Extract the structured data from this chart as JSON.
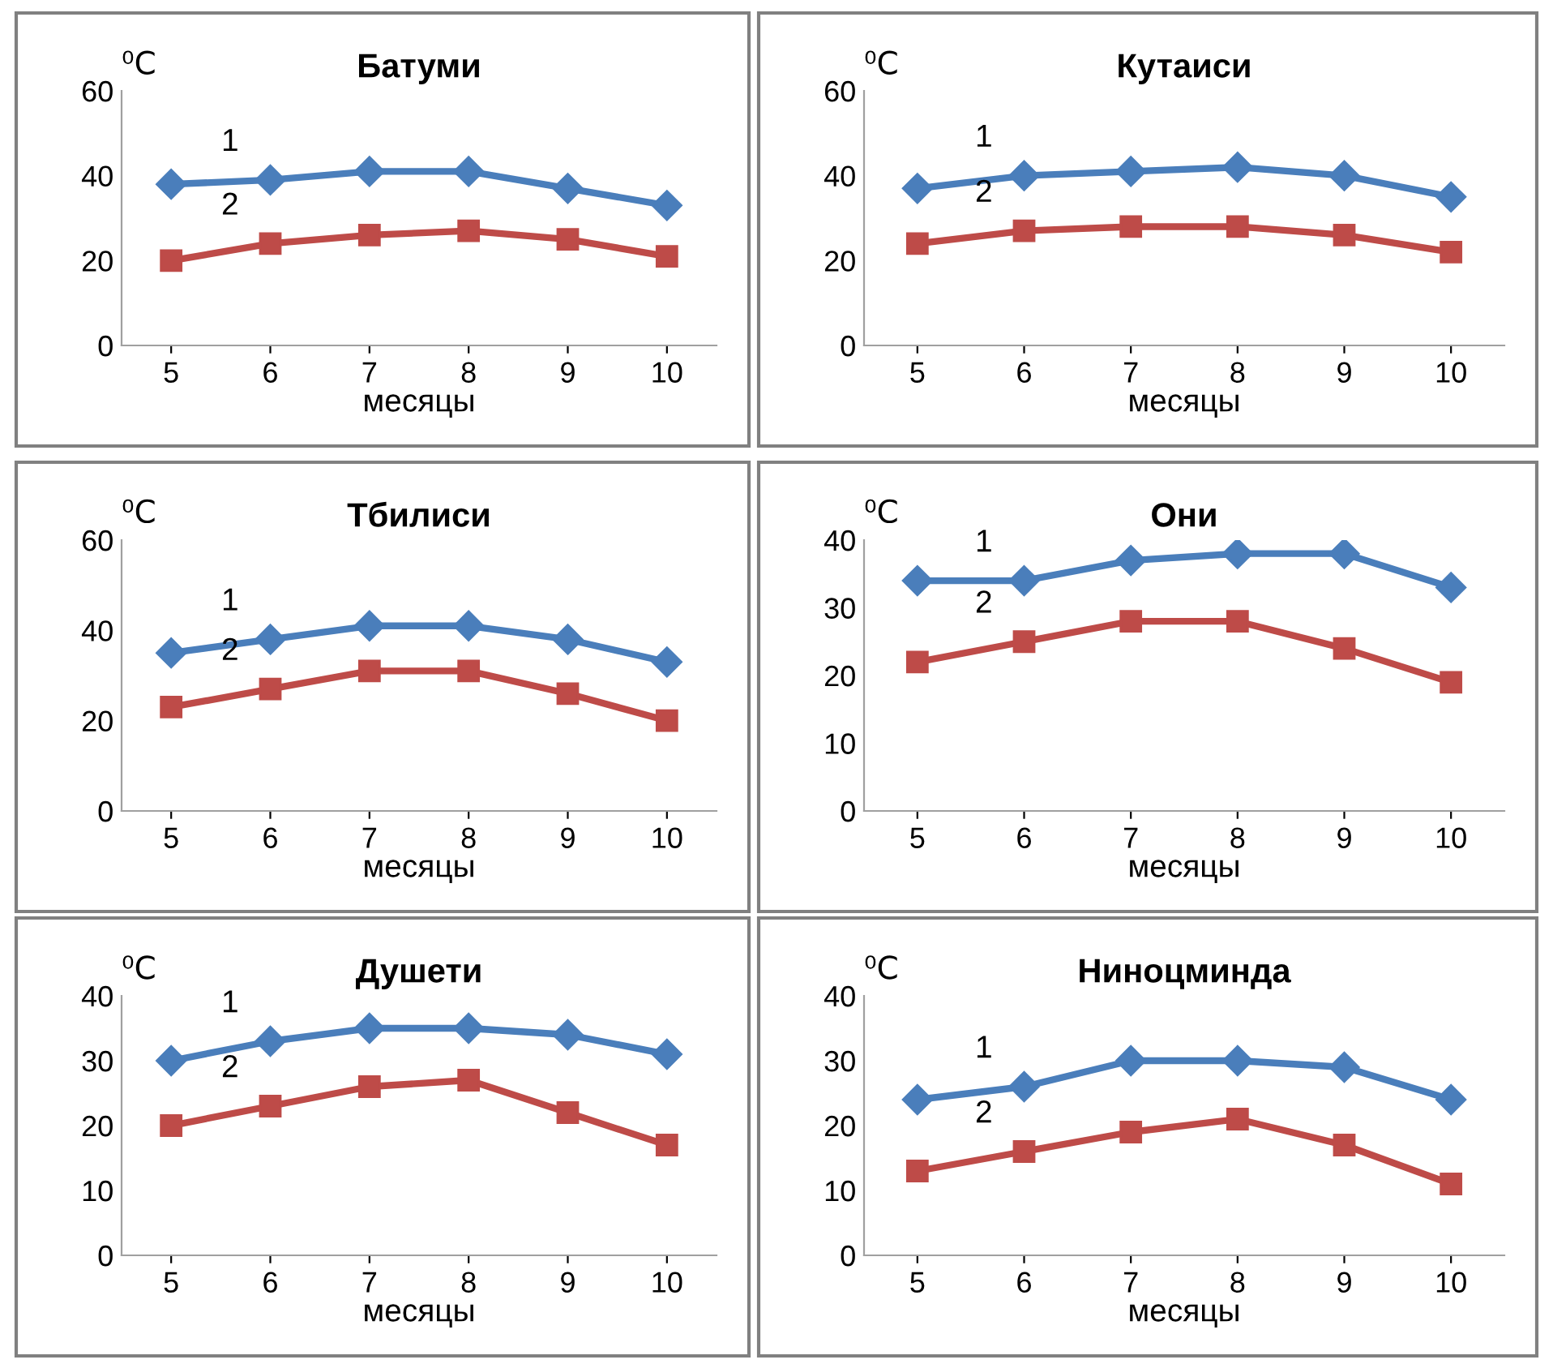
{
  "chart_data": [
    {
      "type": "line",
      "title": "Батуми",
      "xlabel": "месяцы",
      "ylabel": "⁰C",
      "categories": [
        "5",
        "6",
        "7",
        "8",
        "9",
        "10"
      ],
      "ylim": [
        0,
        60
      ],
      "yticks": [
        0,
        20,
        40,
        60
      ],
      "grid": false,
      "annotations": [
        {
          "text": "1",
          "x": "6",
          "y": 39
        },
        {
          "text": "2",
          "x": "6",
          "y": 24
        }
      ],
      "series": [
        {
          "color": "#4a7ebb",
          "marker": "diamond",
          "values": [
            38,
            39,
            41,
            41,
            37,
            33
          ]
        },
        {
          "color": "#be4b48",
          "marker": "square",
          "values": [
            20,
            24,
            26,
            27,
            25,
            21
          ]
        }
      ]
    },
    {
      "type": "line",
      "title": "Кутаиси",
      "xlabel": "месяцы",
      "ylabel": "⁰C",
      "categories": [
        "5",
        "6",
        "7",
        "8",
        "9",
        "10"
      ],
      "ylim": [
        0,
        60
      ],
      "yticks": [
        0,
        20,
        40,
        60
      ],
      "grid": false,
      "annotations": [
        {
          "text": "1",
          "x": "6",
          "y": 40
        },
        {
          "text": "2",
          "x": "6",
          "y": 27
        }
      ],
      "series": [
        {
          "color": "#4a7ebb",
          "marker": "diamond",
          "values": [
            37,
            40,
            41,
            42,
            40,
            35
          ]
        },
        {
          "color": "#be4b48",
          "marker": "square",
          "values": [
            24,
            27,
            28,
            28,
            26,
            22
          ]
        }
      ]
    },
    {
      "type": "line",
      "title": "Тбилиси",
      "xlabel": "месяцы",
      "ylabel": "⁰C",
      "categories": [
        "5",
        "6",
        "7",
        "8",
        "9",
        "10"
      ],
      "ylim": [
        0,
        60
      ],
      "yticks": [
        0,
        20,
        40,
        60
      ],
      "grid": false,
      "annotations": [
        {
          "text": "1",
          "x": "6",
          "y": 38
        },
        {
          "text": "2",
          "x": "6",
          "y": 27
        }
      ],
      "series": [
        {
          "color": "#4a7ebb",
          "marker": "diamond",
          "values": [
            35,
            38,
            41,
            41,
            38,
            33
          ]
        },
        {
          "color": "#be4b48",
          "marker": "square",
          "values": [
            23,
            27,
            31,
            31,
            26,
            20
          ]
        }
      ]
    },
    {
      "type": "line",
      "title": "Они",
      "xlabel": "месяцы",
      "ylabel": "⁰C",
      "categories": [
        "5",
        "6",
        "7",
        "8",
        "9",
        "10"
      ],
      "ylim": [
        0,
        40
      ],
      "yticks": [
        0,
        10,
        20,
        30,
        40
      ],
      "grid": false,
      "annotations": [
        {
          "text": "1",
          "x": "6",
          "y": 34
        },
        {
          "text": "2",
          "x": "6",
          "y": 25
        }
      ],
      "series": [
        {
          "color": "#4a7ebb",
          "marker": "diamond",
          "values": [
            34,
            34,
            37,
            38,
            38,
            33
          ]
        },
        {
          "color": "#be4b48",
          "marker": "square",
          "values": [
            22,
            25,
            28,
            28,
            24,
            19
          ]
        }
      ]
    },
    {
      "type": "line",
      "title": "Душети",
      "xlabel": "месяцы",
      "ylabel": "⁰C",
      "categories": [
        "5",
        "6",
        "7",
        "8",
        "9",
        "10"
      ],
      "ylim": [
        0,
        40
      ],
      "yticks": [
        0,
        10,
        20,
        30,
        40
      ],
      "grid": false,
      "annotations": [
        {
          "text": "1",
          "x": "6",
          "y": 33
        },
        {
          "text": "2",
          "x": "6",
          "y": 23
        }
      ],
      "series": [
        {
          "color": "#4a7ebb",
          "marker": "diamond",
          "values": [
            30,
            33,
            35,
            35,
            34,
            31
          ]
        },
        {
          "color": "#be4b48",
          "marker": "square",
          "values": [
            20,
            23,
            26,
            27,
            22,
            17
          ]
        }
      ]
    },
    {
      "type": "line",
      "title": "Ниноцминда",
      "xlabel": "месяцы",
      "ylabel": "⁰C",
      "categories": [
        "5",
        "6",
        "7",
        "8",
        "9",
        "10"
      ],
      "ylim": [
        0,
        40
      ],
      "yticks": [
        0,
        10,
        20,
        30,
        40
      ],
      "grid": false,
      "annotations": [
        {
          "text": "1",
          "x": "6",
          "y": 26
        },
        {
          "text": "2",
          "x": "6",
          "y": 16
        }
      ],
      "series": [
        {
          "color": "#4a7ebb",
          "marker": "diamond",
          "values": [
            24,
            26,
            30,
            30,
            29,
            24
          ]
        },
        {
          "color": "#be4b48",
          "marker": "square",
          "values": [
            13,
            16,
            19,
            21,
            17,
            11
          ]
        }
      ]
    }
  ]
}
